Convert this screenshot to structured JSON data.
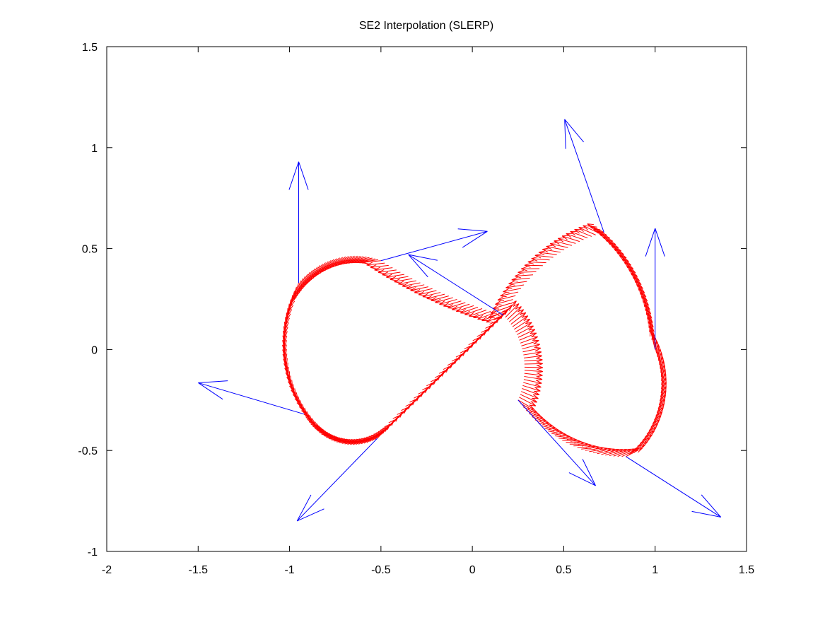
{
  "chart_data": {
    "type": "quiver",
    "title": "SE2 Interpolation (SLERP)",
    "xlabel": "",
    "ylabel": "",
    "xlim": [
      -2,
      1.5
    ],
    "ylim": [
      -1,
      1.5
    ],
    "xticks": [
      -2,
      -1.5,
      -1,
      -0.5,
      0,
      0.5,
      1,
      1.5
    ],
    "yticks": [
      -1,
      -0.5,
      0,
      0.5,
      1,
      1.5
    ],
    "xtick_labels": [
      "-2",
      "-1.5",
      "-1",
      "-0.5",
      "0",
      "0.5",
      "1",
      "1.5"
    ],
    "ytick_labels": [
      "-1",
      "-0.5",
      "0",
      "0.5",
      "1",
      "1.5"
    ],
    "grid": false,
    "legend": "none",
    "series": [
      {
        "color": "#0000ff",
        "role": "keyframe poses",
        "points": [
          {
            "x": -0.95,
            "y": 0.33,
            "angle_deg": 90
          },
          {
            "x": -0.5,
            "y": 0.44,
            "angle_deg": 14
          },
          {
            "x": 0.17,
            "y": 0.17,
            "angle_deg": 150
          },
          {
            "x": -0.92,
            "y": -0.32,
            "angle_deg": 165
          },
          {
            "x": -0.52,
            "y": -0.44,
            "angle_deg": 223
          },
          {
            "x": 0.25,
            "y": -0.25,
            "angle_deg": -45
          },
          {
            "x": 0.72,
            "y": 0.58,
            "angle_deg": 111
          },
          {
            "x": 1.0,
            "y": 0.0,
            "angle_deg": 90
          },
          {
            "x": 0.84,
            "y": -0.53,
            "angle_deg": -30
          }
        ]
      },
      {
        "color": "#ff0000",
        "role": "interpolated poses",
        "points": []
      }
    ]
  }
}
